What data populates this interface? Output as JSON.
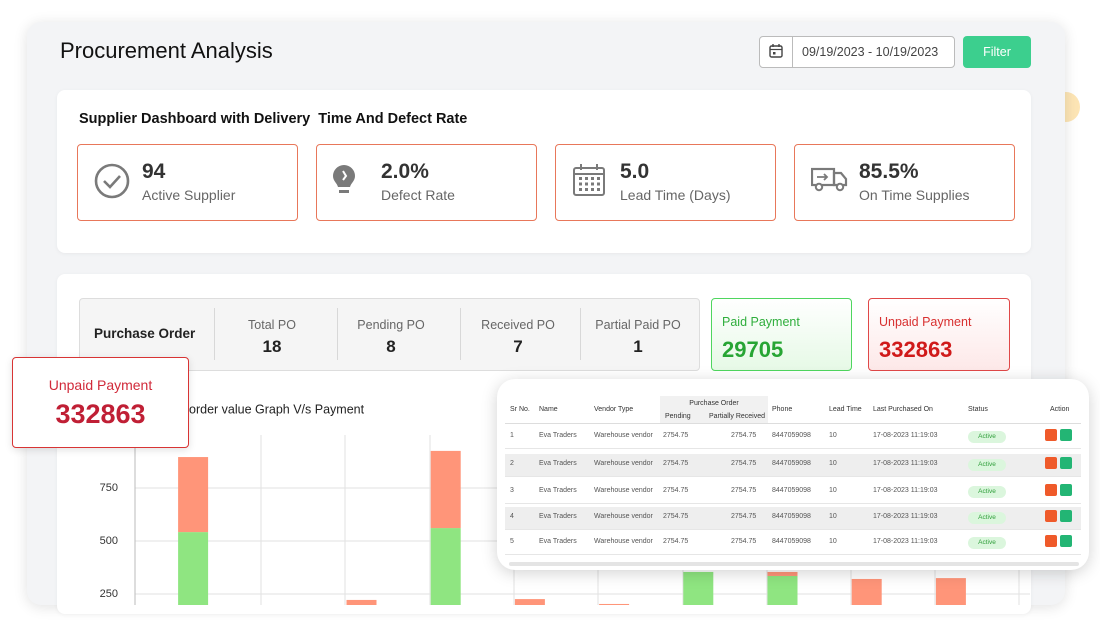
{
  "header": {
    "title": "Procurement Analysis",
    "date_range": "09/19/2023 - 10/19/2023",
    "filter": "Filter"
  },
  "kpi": {
    "title": "Supplier Dashboard with Delivery  Time And Defect Rate",
    "cards": [
      {
        "value": "94",
        "label": "Active Supplier"
      },
      {
        "value": "2.0%",
        "label": "Defect Rate"
      },
      {
        "value": "5.0",
        "label": "Lead Time (Days)"
      },
      {
        "value": "85.5%",
        "label": "On Time Supplies"
      }
    ]
  },
  "purchase_order": {
    "label": "Purchase Order",
    "stats": [
      {
        "label": "Total PO",
        "value": "18"
      },
      {
        "label": "Pending PO",
        "value": "8"
      },
      {
        "label": "Received PO",
        "value": "7"
      },
      {
        "label": "Partial Paid PO",
        "value": "1"
      }
    ]
  },
  "payments": {
    "paid": {
      "label": "Paid Payment",
      "value": "29705"
    },
    "unpaid": {
      "label": "Unpaid Payment",
      "value": "332863"
    }
  },
  "floating_card": {
    "label": "Unpaid Payment",
    "value": "332863"
  },
  "chart_data": {
    "type": "stacked_bar",
    "title": "order value Graph V/s Payment",
    "categories": [
      null,
      null,
      null,
      null,
      null,
      null,
      null,
      null,
      null,
      null
    ],
    "series": [
      {
        "color": "#8fe581",
        "values": [
          542,
          null,
          null,
          561,
          null,
          null,
          354,
          335,
          null,
          null
        ]
      },
      {
        "color": "#ff9579",
        "values": [
          354,
          null,
          222,
          364,
          226,
          203,
          null,
          19,
          321,
          325
        ]
      }
    ],
    "ylim": [
      0,
      1000
    ],
    "yticks": [
      250,
      500,
      750
    ],
    "grid": true
  },
  "table": {
    "group_header": "Purchase Order",
    "columns": [
      "Sr No.",
      "Name",
      "Vendor Type",
      "Pending",
      "Partially Received",
      "Phone",
      "Lead Time",
      "Last Purchased On",
      "Status",
      "Action"
    ],
    "rows": [
      [
        "1",
        "Eva Traders",
        "Warehouse vendor",
        "2754.75",
        "2754.75",
        "8447059098",
        "10",
        "17-08-2023 11:19:03",
        "Active"
      ],
      [
        "2",
        "Eva Traders",
        "Warehouse vendor",
        "2754.75",
        "2754.75",
        "8447059098",
        "10",
        "17-08-2023 11:19:03",
        "Active"
      ],
      [
        "3",
        "Eva Traders",
        "Warehouse vendor",
        "2754.75",
        "2754.75",
        "8447059098",
        "10",
        "17-08-2023 11:19:03",
        "Active"
      ],
      [
        "4",
        "Eva Traders",
        "Warehouse vendor",
        "2754.75",
        "2754.75",
        "8447059098",
        "10",
        "17-08-2023 11:19:03",
        "Active"
      ],
      [
        "5",
        "Eva Traders",
        "Warehouse vendor",
        "2754.75",
        "2754.75",
        "8447059098",
        "10",
        "17-08-2023 11:19:03",
        "Active"
      ]
    ]
  }
}
